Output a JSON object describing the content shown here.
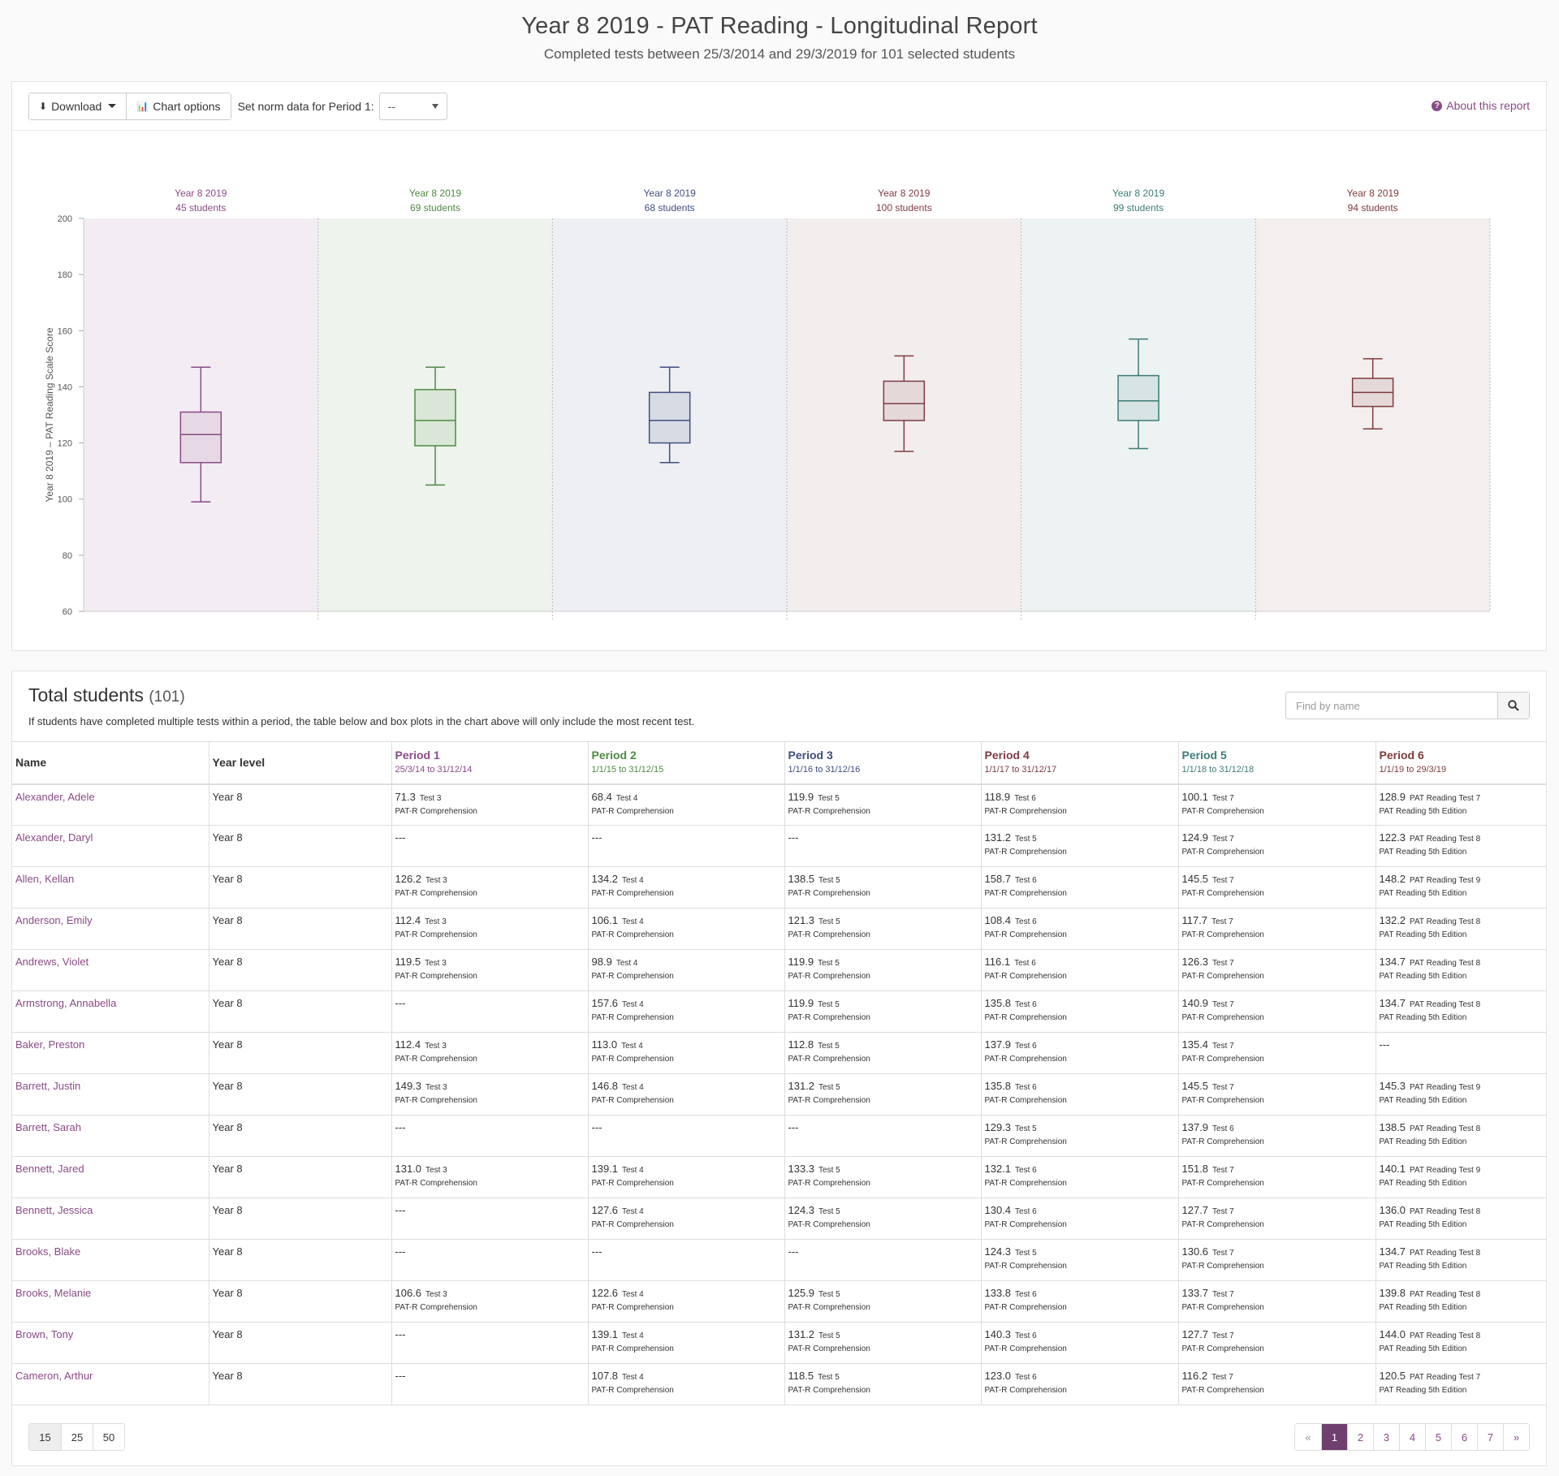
{
  "header": {
    "title": "Year 8 2019 - PAT Reading - Longitudinal Report",
    "subtitle": "Completed tests between 25/3/2014 and 29/3/2019 for 101 selected students"
  },
  "toolbar": {
    "download_label": "Download",
    "chart_options_label": "Chart options",
    "norm_label": "Set norm data for Period 1:",
    "norm_value": "--",
    "about_label": "About this report"
  },
  "chart_data": {
    "type": "boxplot",
    "ylabel": "Year 8 2019 – PAT Reading Scale Score",
    "ylim": [
      60,
      200
    ],
    "yticks": [
      60,
      80,
      100,
      120,
      140,
      160,
      180,
      200
    ],
    "periods": [
      {
        "top1": "Year 8 2019",
        "top2": "45 students",
        "range": "25/03/2014 – 31/12/2014",
        "label": "Period 1",
        "color": "#8a4a86",
        "bg": "#f3edf3",
        "min": 99,
        "q1": 113,
        "median": 123,
        "q3": 131,
        "max": 147
      },
      {
        "top1": "Year 8 2019",
        "top2": "69 students",
        "range": "01/01/2015 – 31/12/2015",
        "label": "Period 2",
        "color": "#4e8a42",
        "bg": "#eef3ed",
        "min": 105,
        "q1": 119,
        "median": 128,
        "q3": 139,
        "max": 147
      },
      {
        "top1": "Year 8 2019",
        "top2": "68 students",
        "range": "01/01/2016 – 31/12/2016",
        "label": "Period 3",
        "color": "#3f4e7e",
        "bg": "#edeff3",
        "min": 113,
        "q1": 120,
        "median": 128,
        "q3": 138,
        "max": 147
      },
      {
        "top1": "Year 8 2019",
        "top2": "100 students",
        "range": "01/01/2017 – 31/12/2017",
        "label": "Period 4",
        "color": "#7e3b45",
        "bg": "#f3eeee",
        "min": 117,
        "q1": 128,
        "median": 134,
        "q3": 142,
        "max": 151
      },
      {
        "top1": "Year 8 2019",
        "top2": "99 students",
        "range": "01/01/2018 – 31/12/2018",
        "label": "Period 5",
        "color": "#3c7c78",
        "bg": "#edf3f2",
        "min": 118,
        "q1": 128,
        "median": 135,
        "q3": 144,
        "max": 157
      },
      {
        "top1": "Year 8 2019",
        "top2": "94 students",
        "range": "01/01/2019 – 29/03/2019",
        "label": "Period 6",
        "color": "#7e3b3b",
        "bg": "#f3efee",
        "min": 125,
        "q1": 133,
        "median": 138,
        "q3": 143,
        "max": 150
      }
    ]
  },
  "students": {
    "title": "Total students",
    "count": "(101)",
    "note": "If students have completed multiple tests within a period, the table below and box plots in the chart above will only include the most recent test.",
    "search_placeholder": "Find by name",
    "col_name": "Name",
    "col_year": "Year level",
    "periods": [
      {
        "name": "Period 1",
        "range": "25/3/14 to 31/12/14",
        "color": "#8a4a86"
      },
      {
        "name": "Period 2",
        "range": "1/1/15 to 31/12/15",
        "color": "#4e8a42"
      },
      {
        "name": "Period 3",
        "range": "1/1/16 to 31/12/16",
        "color": "#3f4e7e"
      },
      {
        "name": "Period 4",
        "range": "1/1/17 to 31/12/17",
        "color": "#7e3b45"
      },
      {
        "name": "Period 5",
        "range": "1/1/18 to 31/12/18",
        "color": "#3c7c78"
      },
      {
        "name": "Period 6",
        "range": "1/1/19 to 29/3/19",
        "color": "#7e3b3b"
      }
    ],
    "rows": [
      {
        "name": "Alexander, Adele",
        "year": "Year 8",
        "cells": [
          [
            "71.3",
            "Test 3",
            "PAT-R Comprehension"
          ],
          [
            "68.4",
            "Test 4",
            "PAT-R Comprehension"
          ],
          [
            "119.9",
            "Test 5",
            "PAT-R Comprehension"
          ],
          [
            "118.9",
            "Test 6",
            "PAT-R Comprehension"
          ],
          [
            "100.1",
            "Test 7",
            "PAT-R Comprehension"
          ],
          [
            "128.9",
            "PAT Reading Test 7",
            "PAT Reading 5th Edition"
          ]
        ]
      },
      {
        "name": "Alexander, Daryl",
        "year": "Year 8",
        "cells": [
          [
            "---"
          ],
          [
            "---"
          ],
          [
            "---"
          ],
          [
            "131.2",
            "Test 5",
            "PAT-R Comprehension"
          ],
          [
            "124.9",
            "Test 7",
            "PAT-R Comprehension"
          ],
          [
            "122.3",
            "PAT Reading Test 8",
            "PAT Reading 5th Edition"
          ]
        ]
      },
      {
        "name": "Allen, Kellan",
        "year": "Year 8",
        "cells": [
          [
            "126.2",
            "Test 3",
            "PAT-R Comprehension"
          ],
          [
            "134.2",
            "Test 4",
            "PAT-R Comprehension"
          ],
          [
            "138.5",
            "Test 5",
            "PAT-R Comprehension"
          ],
          [
            "158.7",
            "Test 6",
            "PAT-R Comprehension"
          ],
          [
            "145.5",
            "Test 7",
            "PAT-R Comprehension"
          ],
          [
            "148.2",
            "PAT Reading Test 9",
            "PAT Reading 5th Edition"
          ]
        ]
      },
      {
        "name": "Anderson, Emily",
        "year": "Year 8",
        "cells": [
          [
            "112.4",
            "Test 3",
            "PAT-R Comprehension"
          ],
          [
            "106.1",
            "Test 4",
            "PAT-R Comprehension"
          ],
          [
            "121.3",
            "Test 5",
            "PAT-R Comprehension"
          ],
          [
            "108.4",
            "Test 6",
            "PAT-R Comprehension"
          ],
          [
            "117.7",
            "Test 7",
            "PAT-R Comprehension"
          ],
          [
            "132.2",
            "PAT Reading Test 8",
            "PAT Reading 5th Edition"
          ]
        ]
      },
      {
        "name": "Andrews, Violet",
        "year": "Year 8",
        "cells": [
          [
            "119.5",
            "Test 3",
            "PAT-R Comprehension"
          ],
          [
            "98.9",
            "Test 4",
            "PAT-R Comprehension"
          ],
          [
            "119.9",
            "Test 5",
            "PAT-R Comprehension"
          ],
          [
            "116.1",
            "Test 6",
            "PAT-R Comprehension"
          ],
          [
            "126.3",
            "Test 7",
            "PAT-R Comprehension"
          ],
          [
            "134.7",
            "PAT Reading Test 8",
            "PAT Reading 5th Edition"
          ]
        ]
      },
      {
        "name": "Armstrong, Annabella",
        "year": "Year 8",
        "cells": [
          [
            "---"
          ],
          [
            "157.6",
            "Test 4",
            "PAT-R Comprehension"
          ],
          [
            "119.9",
            "Test 5",
            "PAT-R Comprehension"
          ],
          [
            "135.8",
            "Test 6",
            "PAT-R Comprehension"
          ],
          [
            "140.9",
            "Test 7",
            "PAT-R Comprehension"
          ],
          [
            "134.7",
            "PAT Reading Test 8",
            "PAT Reading 5th Edition"
          ]
        ]
      },
      {
        "name": "Baker, Preston",
        "year": "Year 8",
        "cells": [
          [
            "112.4",
            "Test 3",
            "PAT-R Comprehension"
          ],
          [
            "113.0",
            "Test 4",
            "PAT-R Comprehension"
          ],
          [
            "112.8",
            "Test 5",
            "PAT-R Comprehension"
          ],
          [
            "137.9",
            "Test 6",
            "PAT-R Comprehension"
          ],
          [
            "135.4",
            "Test 7",
            "PAT-R Comprehension"
          ],
          [
            "---"
          ]
        ]
      },
      {
        "name": "Barrett, Justin",
        "year": "Year 8",
        "cells": [
          [
            "149.3",
            "Test 3",
            "PAT-R Comprehension"
          ],
          [
            "146.8",
            "Test 4",
            "PAT-R Comprehension"
          ],
          [
            "131.2",
            "Test 5",
            "PAT-R Comprehension"
          ],
          [
            "135.8",
            "Test 6",
            "PAT-R Comprehension"
          ],
          [
            "145.5",
            "Test 7",
            "PAT-R Comprehension"
          ],
          [
            "145.3",
            "PAT Reading Test 9",
            "PAT Reading 5th Edition"
          ]
        ]
      },
      {
        "name": "Barrett, Sarah",
        "year": "Year 8",
        "cells": [
          [
            "---"
          ],
          [
            "---"
          ],
          [
            "---"
          ],
          [
            "129.3",
            "Test 5",
            "PAT-R Comprehension"
          ],
          [
            "137.9",
            "Test 6",
            "PAT-R Comprehension"
          ],
          [
            "138.5",
            "PAT Reading Test 8",
            "PAT Reading 5th Edition"
          ]
        ]
      },
      {
        "name": "Bennett, Jared",
        "year": "Year 8",
        "cells": [
          [
            "131.0",
            "Test 3",
            "PAT-R Comprehension"
          ],
          [
            "139.1",
            "Test 4",
            "PAT-R Comprehension"
          ],
          [
            "133.3",
            "Test 5",
            "PAT-R Comprehension"
          ],
          [
            "132.1",
            "Test 6",
            "PAT-R Comprehension"
          ],
          [
            "151.8",
            "Test 7",
            "PAT-R Comprehension"
          ],
          [
            "140.1",
            "PAT Reading Test 9",
            "PAT Reading 5th Edition"
          ]
        ]
      },
      {
        "name": "Bennett, Jessica",
        "year": "Year 8",
        "cells": [
          [
            "---"
          ],
          [
            "127.6",
            "Test 4",
            "PAT-R Comprehension"
          ],
          [
            "124.3",
            "Test 5",
            "PAT-R Comprehension"
          ],
          [
            "130.4",
            "Test 6",
            "PAT-R Comprehension"
          ],
          [
            "127.7",
            "Test 7",
            "PAT-R Comprehension"
          ],
          [
            "136.0",
            "PAT Reading Test 8",
            "PAT Reading 5th Edition"
          ]
        ]
      },
      {
        "name": "Brooks, Blake",
        "year": "Year 8",
        "cells": [
          [
            "---"
          ],
          [
            "---"
          ],
          [
            "---"
          ],
          [
            "124.3",
            "Test 5",
            "PAT-R Comprehension"
          ],
          [
            "130.6",
            "Test 7",
            "PAT-R Comprehension"
          ],
          [
            "134.7",
            "PAT Reading Test 8",
            "PAT Reading 5th Edition"
          ]
        ]
      },
      {
        "name": "Brooks, Melanie",
        "year": "Year 8",
        "cells": [
          [
            "106.6",
            "Test 3",
            "PAT-R Comprehension"
          ],
          [
            "122.6",
            "Test 4",
            "PAT-R Comprehension"
          ],
          [
            "125.9",
            "Test 5",
            "PAT-R Comprehension"
          ],
          [
            "133.8",
            "Test 6",
            "PAT-R Comprehension"
          ],
          [
            "133.7",
            "Test 7",
            "PAT-R Comprehension"
          ],
          [
            "139.8",
            "PAT Reading Test 8",
            "PAT Reading 5th Edition"
          ]
        ]
      },
      {
        "name": "Brown, Tony",
        "year": "Year 8",
        "cells": [
          [
            "---"
          ],
          [
            "139.1",
            "Test 4",
            "PAT-R Comprehension"
          ],
          [
            "131.2",
            "Test 5",
            "PAT-R Comprehension"
          ],
          [
            "140.3",
            "Test 6",
            "PAT-R Comprehension"
          ],
          [
            "127.7",
            "Test 7",
            "PAT-R Comprehension"
          ],
          [
            "144.0",
            "PAT Reading Test 8",
            "PAT Reading 5th Edition"
          ]
        ]
      },
      {
        "name": "Cameron, Arthur",
        "year": "Year 8",
        "cells": [
          [
            "---"
          ],
          [
            "107.8",
            "Test 4",
            "PAT-R Comprehension"
          ],
          [
            "118.5",
            "Test 5",
            "PAT-R Comprehension"
          ],
          [
            "123.0",
            "Test 6",
            "PAT-R Comprehension"
          ],
          [
            "116.2",
            "Test 7",
            "PAT-R Comprehension"
          ],
          [
            "120.5",
            "PAT Reading Test 7",
            "PAT Reading 5th Edition"
          ]
        ]
      }
    ]
  },
  "pager": {
    "sizes": [
      "15",
      "25",
      "50"
    ],
    "pages": [
      "«",
      "1",
      "2",
      "3",
      "4",
      "5",
      "6",
      "7",
      "»"
    ],
    "current": "1"
  }
}
